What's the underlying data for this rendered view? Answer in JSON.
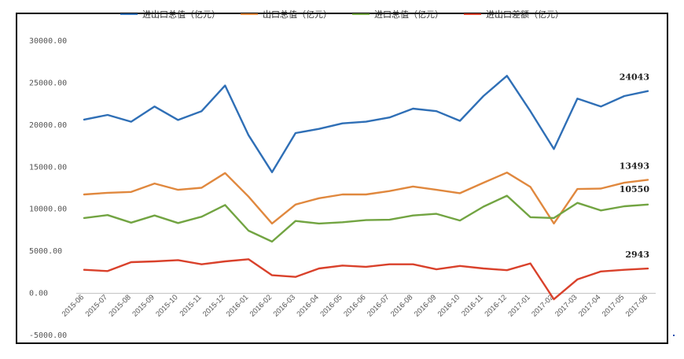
{
  "chart_data": {
    "type": "line",
    "title": "",
    "xlabel": "",
    "ylabel": "",
    "ylim": [
      -5000,
      30000
    ],
    "y_ticks": [
      "30000.00",
      "25000.00",
      "20000.00",
      "15000.00",
      "10000.00",
      "5000.00",
      "0.00",
      "-5000.00"
    ],
    "y_tick_values": [
      30000,
      25000,
      20000,
      15000,
      10000,
      5000,
      0,
      -5000
    ],
    "legend_position": "top",
    "grid": false,
    "categories": [
      "2015-06",
      "2015-07",
      "2015-08",
      "2015-09",
      "2015-10",
      "2015-11",
      "2015-12",
      "2016-01",
      "2016-02",
      "2016-03",
      "2016-04",
      "2016-05",
      "2016-06",
      "2016-07",
      "2016-08",
      "2016-09",
      "2016-10",
      "2016-11",
      "2016-12",
      "2017-01",
      "2017-02",
      "2017-03",
      "2017-04",
      "2017-05",
      "2017-06"
    ],
    "series": [
      {
        "name": "进出口总值（亿元）",
        "color": "#2f6fb6",
        "end_label": "24043",
        "values": [
          20650,
          21200,
          20400,
          22200,
          20600,
          21650,
          24700,
          18800,
          14400,
          19050,
          19550,
          20200,
          20400,
          20900,
          21950,
          21650,
          20500,
          23450,
          25850,
          21650,
          17150,
          23150,
          22200,
          23450,
          24043
        ]
      },
      {
        "name": "出口总值（亿元）",
        "color": "#e0883e",
        "end_label": "13493",
        "values": [
          11750,
          11950,
          12050,
          13050,
          12300,
          12550,
          14300,
          11500,
          8300,
          10550,
          11300,
          11750,
          11750,
          12150,
          12700,
          12300,
          11900,
          13150,
          14350,
          12650,
          8300,
          12400,
          12450,
          13150,
          13493
        ]
      },
      {
        "name": "进口总值（亿元）",
        "color": "#72a442",
        "end_label": "10550",
        "values": [
          8950,
          9300,
          8400,
          9250,
          8350,
          9100,
          10500,
          7450,
          6150,
          8600,
          8300,
          8450,
          8700,
          8750,
          9250,
          9450,
          8650,
          10300,
          11600,
          9050,
          8950,
          10750,
          9850,
          10350,
          10550
        ]
      },
      {
        "name": "进出口差额（亿元）",
        "color": "#d9412b",
        "end_label": "2943",
        "values": [
          2800,
          2650,
          3700,
          3800,
          3950,
          3450,
          3800,
          4050,
          2150,
          1950,
          2950,
          3300,
          3150,
          3450,
          3450,
          2850,
          3250,
          2950,
          2750,
          3550,
          -700,
          1650,
          2600,
          2800,
          2943
        ]
      }
    ]
  }
}
